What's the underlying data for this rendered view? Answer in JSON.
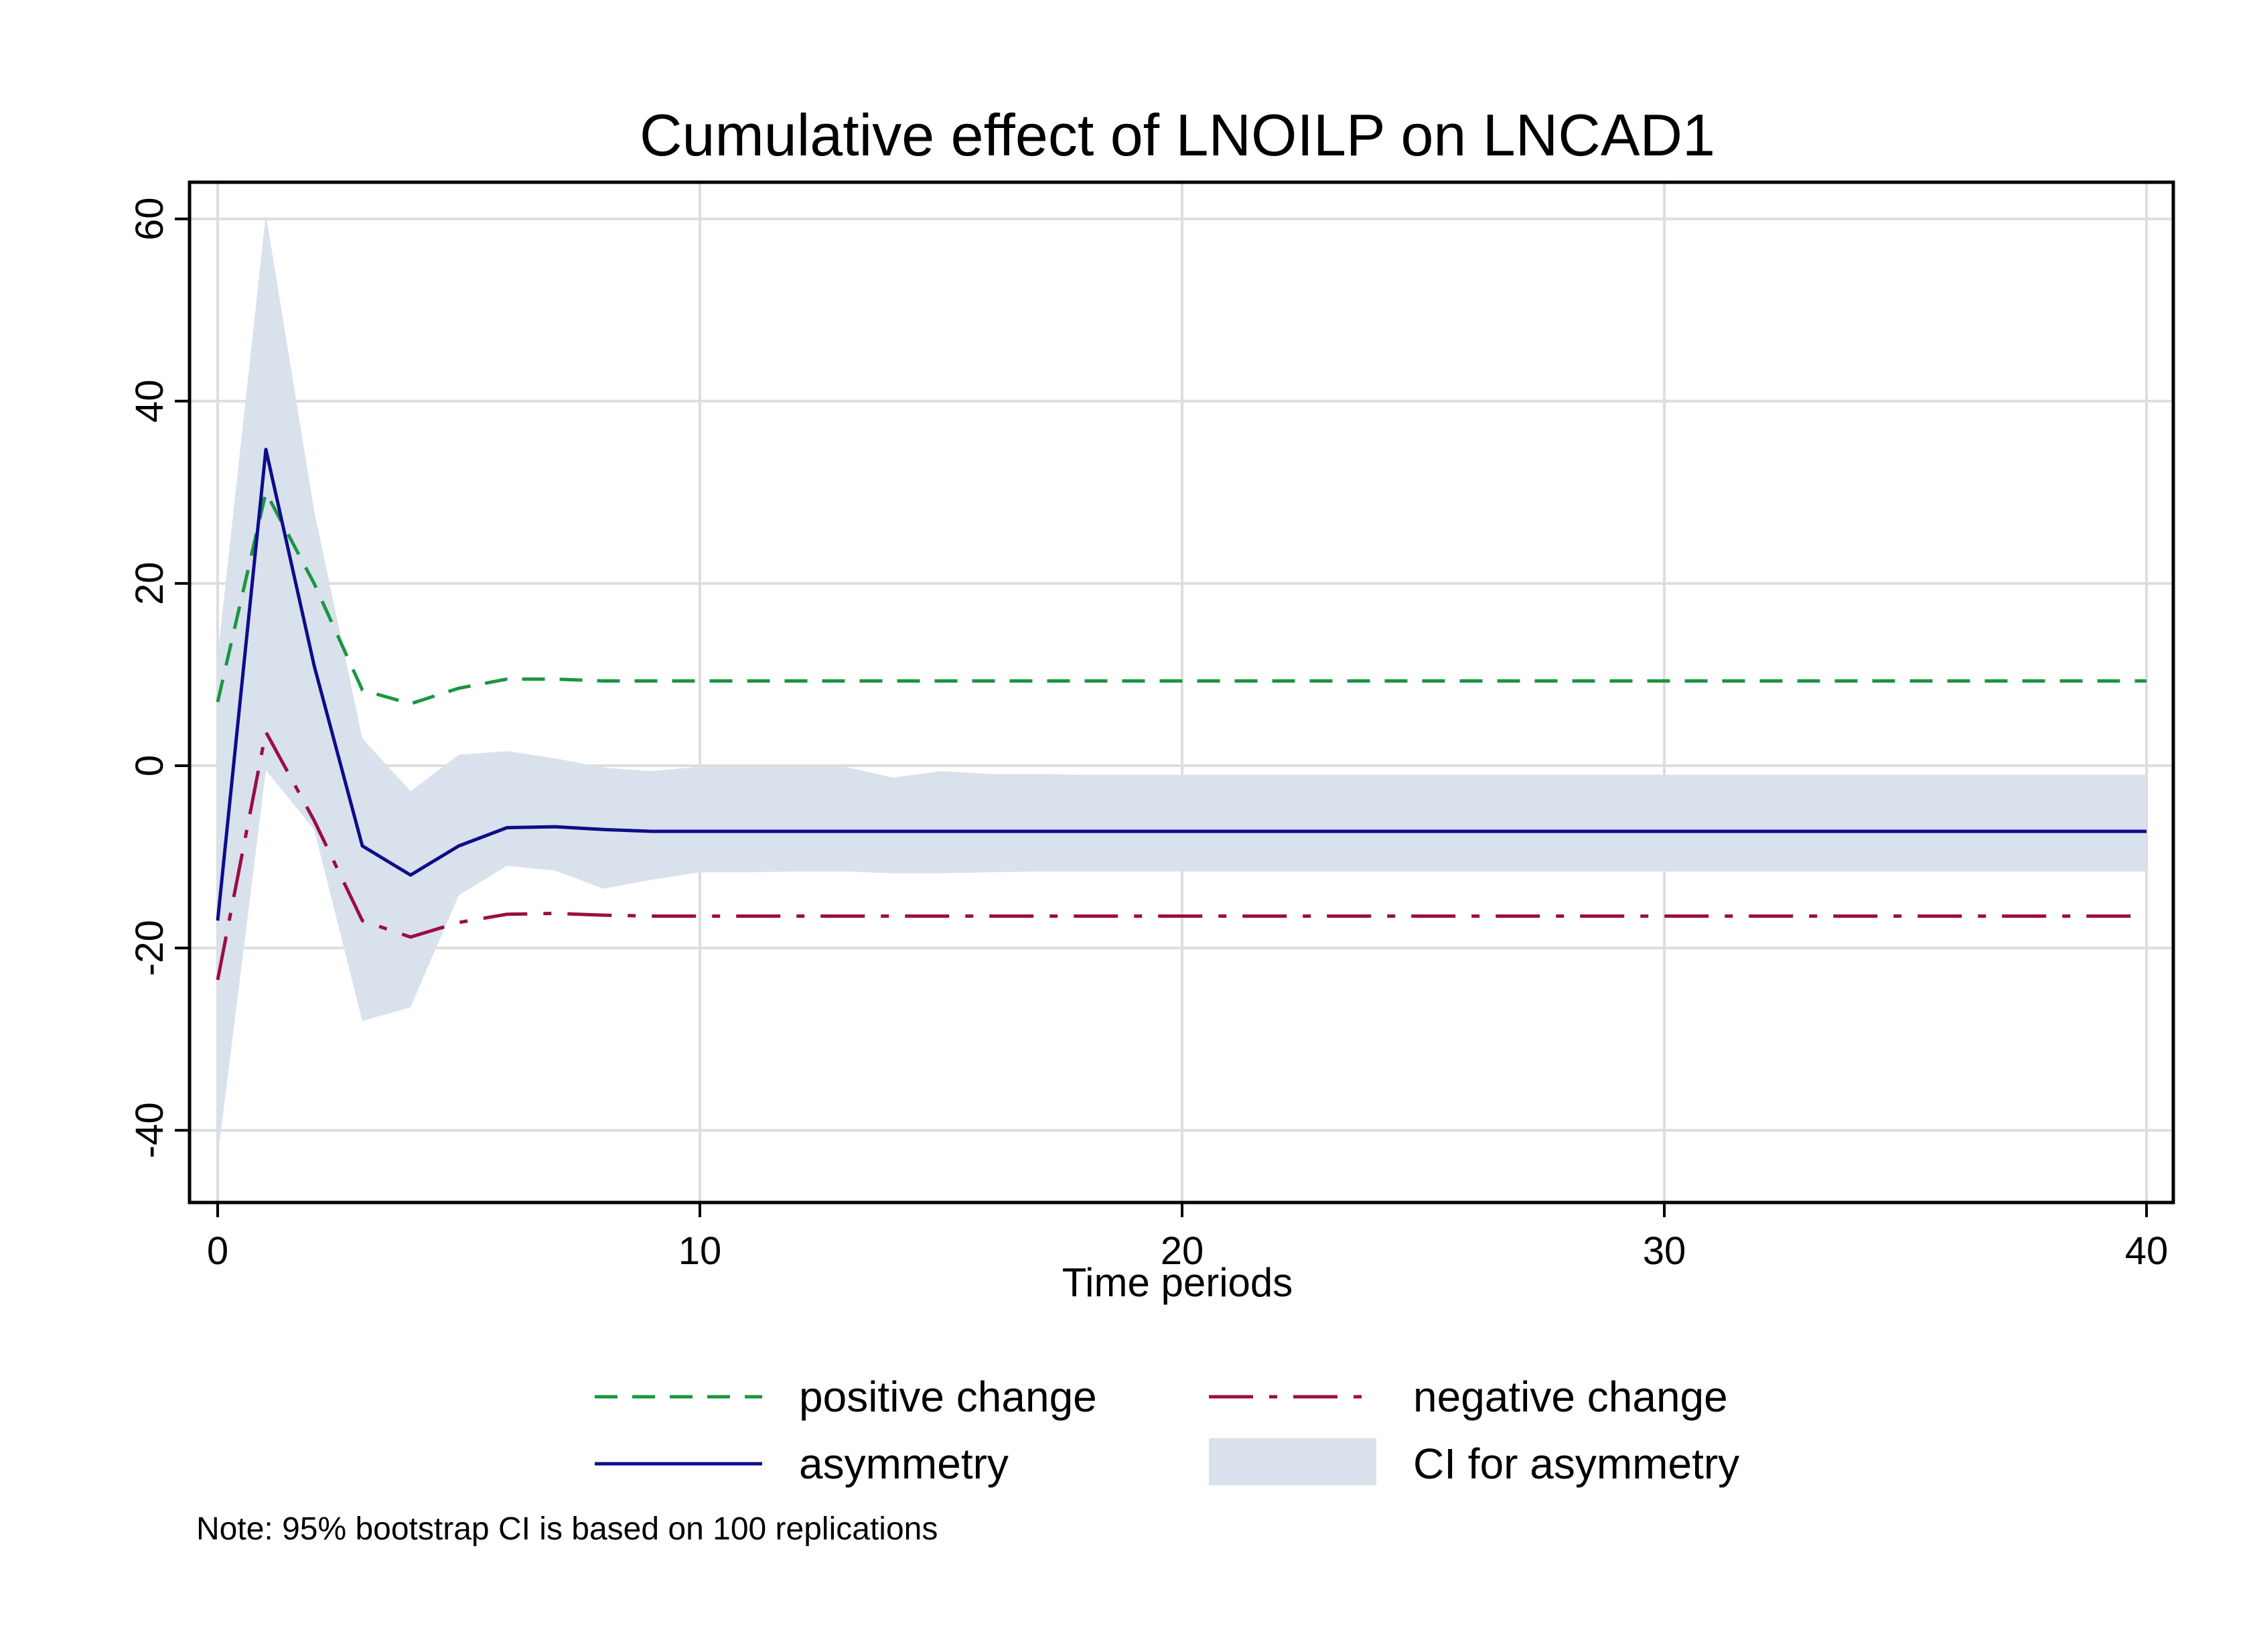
{
  "chart_data": {
    "type": "line",
    "title": "Cumulative effect of LNOILP on LNCAD1",
    "xlabel": "Time periods",
    "ylabel": "",
    "xlim": [
      0,
      40
    ],
    "ylim": [
      -48,
      64
    ],
    "xticks": [
      "0",
      "10",
      "20",
      "30",
      "40"
    ],
    "yticks": [
      "-40",
      "-20",
      "0",
      "20",
      "40",
      "60"
    ],
    "grid": true,
    "legend_position": "bottom",
    "note": "Note: 95% bootstrap CI is based on 100 replications",
    "colors": {
      "positive": "#1a9641",
      "negative": "#9b0d45",
      "asymmetry": "#0d0d8a",
      "ci": "#d9e1ec",
      "grid": "#dddddd"
    },
    "x": [
      0,
      1,
      2,
      3,
      4,
      5,
      6,
      7,
      8,
      9,
      10,
      11,
      12,
      13,
      14,
      15,
      16,
      17,
      18,
      19,
      20,
      21,
      22,
      23,
      24,
      25,
      26,
      27,
      28,
      29,
      30,
      31,
      32,
      33,
      34,
      35,
      36,
      37,
      38,
      39,
      40
    ],
    "series": [
      {
        "name": "positive change",
        "style": "dashed",
        "values": [
          7,
          30,
          20,
          8.3,
          6.8,
          8.5,
          9.5,
          9.5,
          9.3,
          9.3,
          9.3,
          9.3,
          9.3,
          9.3,
          9.3,
          9.3,
          9.3,
          9.3,
          9.3,
          9.3,
          9.3,
          9.3,
          9.3,
          9.3,
          9.3,
          9.3,
          9.3,
          9.3,
          9.3,
          9.3,
          9.3,
          9.3,
          9.3,
          9.3,
          9.3,
          9.3,
          9.3,
          9.3,
          9.3,
          9.3,
          9.3
        ]
      },
      {
        "name": "negative change",
        "style": "longdash",
        "values": [
          -23.5,
          3.7,
          -6,
          -17,
          -18.8,
          -17.2,
          -16.3,
          -16.2,
          -16.4,
          -16.5,
          -16.5,
          -16.5,
          -16.5,
          -16.5,
          -16.5,
          -16.5,
          -16.5,
          -16.5,
          -16.5,
          -16.5,
          -16.5,
          -16.5,
          -16.5,
          -16.5,
          -16.5,
          -16.5,
          -16.5,
          -16.5,
          -16.5,
          -16.5,
          -16.5,
          -16.5,
          -16.5,
          -16.5,
          -16.5,
          -16.5,
          -16.5,
          -16.5,
          -16.5,
          -16.5,
          -16.5
        ]
      },
      {
        "name": "asymmetry",
        "style": "solid",
        "values": [
          -17,
          34.7,
          11,
          -8.8,
          -12,
          -8.8,
          -6.8,
          -6.7,
          -7,
          -7.2,
          -7.2,
          -7.2,
          -7.2,
          -7.2,
          -7.2,
          -7.2,
          -7.2,
          -7.2,
          -7.2,
          -7.2,
          -7.2,
          -7.2,
          -7.2,
          -7.2,
          -7.2,
          -7.2,
          -7.2,
          -7.2,
          -7.2,
          -7.2,
          -7.2,
          -7.2,
          -7.2,
          -7.2,
          -7.2,
          -7.2,
          -7.2,
          -7.2,
          -7.2,
          -7.2,
          -7.2
        ]
      }
    ],
    "ci": {
      "name": "CI for asymmetry",
      "upper": [
        12,
        60.5,
        28,
        3,
        -2.8,
        1.2,
        1.6,
        0.8,
        -0.2,
        -0.6,
        -0.1,
        -0.1,
        -0.1,
        -0.1,
        -1.3,
        -0.6,
        -0.9,
        -0.9,
        -1,
        -1,
        -1,
        -1,
        -1,
        -1,
        -1,
        -1,
        -1,
        -1,
        -1,
        -1,
        -1,
        -1,
        -1,
        -1,
        -1,
        -1,
        -1,
        -1,
        -1,
        -1,
        -1
      ],
      "lower": [
        -43,
        -0.5,
        -7,
        -28,
        -26.5,
        -14.2,
        -11,
        -11.5,
        -13.5,
        -12.5,
        -11.7,
        -11.7,
        -11.6,
        -11.6,
        -11.8,
        -11.8,
        -11.7,
        -11.6,
        -11.6,
        -11.6,
        -11.6,
        -11.6,
        -11.6,
        -11.6,
        -11.6,
        -11.6,
        -11.6,
        -11.6,
        -11.6,
        -11.6,
        -11.6,
        -11.6,
        -11.6,
        -11.6,
        -11.6,
        -11.6,
        -11.6,
        -11.6,
        -11.6,
        -11.6,
        -11.6
      ]
    }
  }
}
